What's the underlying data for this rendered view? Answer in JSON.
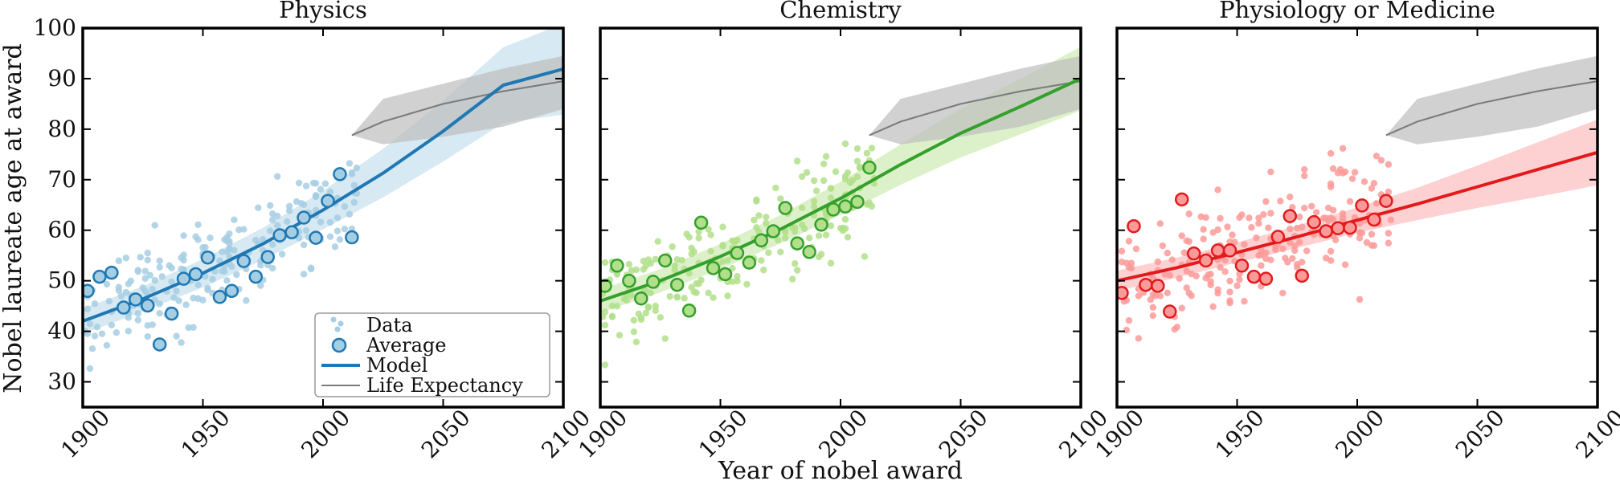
{
  "figure": {
    "ylabel": "Nobel laureate age at award",
    "xlabel": "Year of nobel award"
  },
  "legend": {
    "placement": "lower right of first panel",
    "items": [
      {
        "label": "Data",
        "kind": "points"
      },
      {
        "label": "Average",
        "kind": "circle"
      },
      {
        "label": "Model",
        "kind": "line"
      },
      {
        "label": "Life Expectancy",
        "kind": "gray-line"
      }
    ]
  },
  "chart_data": [
    {
      "type": "scatter",
      "title": "Physics",
      "xlim": [
        1900,
        2100
      ],
      "ylim": [
        25,
        100
      ],
      "xticks": [
        "1900",
        "1950",
        "2000",
        "2050",
        "2100"
      ],
      "yticks": [
        "30",
        "40",
        "50",
        "60",
        "70",
        "80",
        "90",
        "100"
      ],
      "colors": {
        "data": "#a6cee3",
        "line": "#1f78b4",
        "band": "#a6cee3"
      },
      "averages": [
        [
          1902,
          48.0
        ],
        [
          1907,
          50.8
        ],
        [
          1912,
          51.6
        ],
        [
          1917,
          44.7
        ],
        [
          1922,
          46.3
        ],
        [
          1927,
          45.1
        ],
        [
          1932,
          37.4
        ],
        [
          1937,
          43.5
        ],
        [
          1942,
          50.4
        ],
        [
          1947,
          51.3
        ],
        [
          1952,
          54.6
        ],
        [
          1957,
          46.8
        ],
        [
          1962,
          48.0
        ],
        [
          1967,
          53.9
        ],
        [
          1972,
          50.8
        ],
        [
          1977,
          54.7
        ],
        [
          1982,
          59.0
        ],
        [
          1987,
          59.6
        ],
        [
          1992,
          62.5
        ],
        [
          1997,
          58.5
        ],
        [
          2002,
          65.8
        ],
        [
          2007,
          71.1
        ],
        [
          2012,
          58.6
        ]
      ],
      "model": {
        "x": [
          1900,
          1925,
          1950,
          1975,
          2000,
          2025,
          2050,
          2075,
          2100
        ],
        "y": [
          42.0,
          46.4,
          51.5,
          57.3,
          64.0,
          71.3,
          79.6,
          88.7,
          91.9
        ],
        "lower_upper_spread": [
          2.5,
          2.5,
          2.8,
          3.2,
          3.8,
          4.8,
          6.0,
          7.5,
          9.0
        ]
      },
      "life_expectancy": {
        "x": [
          2012,
          2025,
          2050,
          2075,
          2100
        ],
        "y": [
          78.8,
          81.5,
          85.0,
          87.5,
          89.5
        ],
        "band": [
          [
            78.8,
            78.8
          ],
          [
            77.0,
            86.0
          ],
          [
            78.5,
            89.0
          ],
          [
            80.5,
            92.0
          ],
          [
            84.0,
            94.5
          ]
        ]
      }
    },
    {
      "type": "scatter",
      "title": "Chemistry",
      "xlim": [
        1900,
        2100
      ],
      "ylim": [
        25,
        100
      ],
      "xticks": [
        "1900",
        "1950",
        "2000",
        "2050",
        "2100"
      ],
      "colors": {
        "data": "#b2df8a",
        "line": "#33a02c",
        "band": "#b2df8a"
      },
      "averages": [
        [
          1902,
          49.0
        ],
        [
          1907,
          53.0
        ],
        [
          1912,
          50.0
        ],
        [
          1917,
          46.5
        ],
        [
          1922,
          49.8
        ],
        [
          1927,
          54.0
        ],
        [
          1932,
          49.2
        ],
        [
          1937,
          44.1
        ],
        [
          1942,
          61.5
        ],
        [
          1947,
          52.5
        ],
        [
          1952,
          51.3
        ],
        [
          1957,
          55.5
        ],
        [
          1962,
          53.6
        ],
        [
          1967,
          58.0
        ],
        [
          1972,
          59.8
        ],
        [
          1977,
          64.4
        ],
        [
          1982,
          57.4
        ],
        [
          1987,
          55.7
        ],
        [
          1992,
          61.1
        ],
        [
          1997,
          64.1
        ],
        [
          2002,
          64.7
        ],
        [
          2007,
          65.6
        ],
        [
          2012,
          72.4
        ]
      ],
      "model": {
        "x": [
          1900,
          1925,
          1950,
          1975,
          2000,
          2025,
          2050,
          2075,
          2100
        ],
        "y": [
          46.0,
          50.0,
          54.8,
          60.2,
          66.3,
          73.0,
          79.2,
          84.5,
          90.0
        ],
        "lower_upper_spread": [
          2.3,
          2.3,
          2.5,
          2.8,
          3.3,
          4.0,
          4.8,
          5.5,
          6.3
        ]
      },
      "life_expectancy": {
        "x": [
          2012,
          2025,
          2050,
          2075,
          2100
        ],
        "y": [
          78.8,
          81.5,
          85.0,
          87.5,
          89.5
        ],
        "band": [
          [
            78.8,
            78.8
          ],
          [
            77.0,
            86.0
          ],
          [
            78.5,
            89.0
          ],
          [
            80.5,
            92.0
          ],
          [
            84.0,
            94.5
          ]
        ]
      }
    },
    {
      "type": "scatter",
      "title": "Physiology or Medicine",
      "xlim": [
        1900,
        2100
      ],
      "ylim": [
        25,
        100
      ],
      "xticks": [
        "1900",
        "1950",
        "2000",
        "2050",
        "2100"
      ],
      "colors": {
        "data": "#fb9a99",
        "line": "#e31a1c",
        "band": "#fb9a99"
      },
      "averages": [
        [
          1902,
          47.6
        ],
        [
          1907,
          60.8
        ],
        [
          1912,
          49.2
        ],
        [
          1917,
          49.0
        ],
        [
          1922,
          43.9
        ],
        [
          1927,
          66.1
        ],
        [
          1932,
          55.4
        ],
        [
          1937,
          54.0
        ],
        [
          1942,
          56.0
        ],
        [
          1947,
          56.0
        ],
        [
          1952,
          53.0
        ],
        [
          1957,
          50.8
        ],
        [
          1962,
          50.4
        ],
        [
          1967,
          58.7
        ],
        [
          1972,
          62.8
        ],
        [
          1977,
          51.0
        ],
        [
          1982,
          61.6
        ],
        [
          1987,
          59.8
        ],
        [
          1992,
          60.4
        ],
        [
          1997,
          60.5
        ],
        [
          2002,
          64.9
        ],
        [
          2007,
          62.1
        ],
        [
          2012,
          65.8
        ]
      ],
      "model": {
        "x": [
          1900,
          1925,
          1950,
          1975,
          2000,
          2025,
          2050,
          2075,
          2100
        ],
        "y": [
          50.0,
          52.6,
          55.6,
          58.7,
          62.0,
          65.2,
          68.6,
          72.0,
          75.4
        ],
        "lower_upper_spread": [
          2.0,
          2.0,
          2.0,
          2.2,
          2.5,
          3.2,
          4.2,
          5.4,
          6.5
        ]
      },
      "life_expectancy": {
        "x": [
          2012,
          2025,
          2050,
          2075,
          2100
        ],
        "y": [
          78.8,
          81.5,
          85.0,
          87.5,
          89.5
        ],
        "band": [
          [
            78.8,
            78.8
          ],
          [
            77.0,
            86.0
          ],
          [
            78.5,
            89.0
          ],
          [
            80.5,
            92.0
          ],
          [
            84.0,
            94.5
          ]
        ]
      }
    }
  ]
}
